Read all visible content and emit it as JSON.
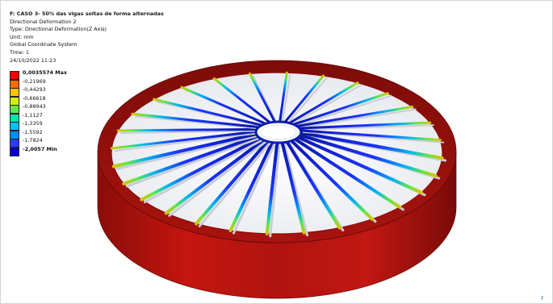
{
  "header": {
    "title": "F: CASO 3- 50% das vigas soltas de forma alternadas",
    "lines": [
      "Directional Deformation 2",
      "Type: Directional Deformation(Z Axis)",
      "Unit: mm",
      "Global Coordinate System",
      "Time: 1",
      "24/10/2022 11:23"
    ]
  },
  "legend": {
    "items": [
      {
        "label": "0,0035574 Max",
        "color": "#ff0000",
        "bold": true
      },
      {
        "label": "-0,21969",
        "color": "#ff6a00",
        "bold": false
      },
      {
        "label": "-0,44293",
        "color": "#ffc400",
        "bold": false
      },
      {
        "label": "-0,66618",
        "color": "#d2f200",
        "bold": false
      },
      {
        "label": "-0,88943",
        "color": "#5ee84a",
        "bold": false
      },
      {
        "label": "-1,1127",
        "color": "#00e3b0",
        "bold": false
      },
      {
        "label": "-1,3359",
        "color": "#00c2ee",
        "bold": false
      },
      {
        "label": "-1,5592",
        "color": "#008cff",
        "bold": false
      },
      {
        "label": "-1,7824",
        "color": "#2c3cff",
        "bold": false
      },
      {
        "label": "-2,0057 Min",
        "color": "#0000c8",
        "bold": true
      }
    ]
  },
  "axis_label": "z",
  "colors": {
    "rim": "#b5120e",
    "beam": "#0a1ea8",
    "background": "#ffffff"
  }
}
